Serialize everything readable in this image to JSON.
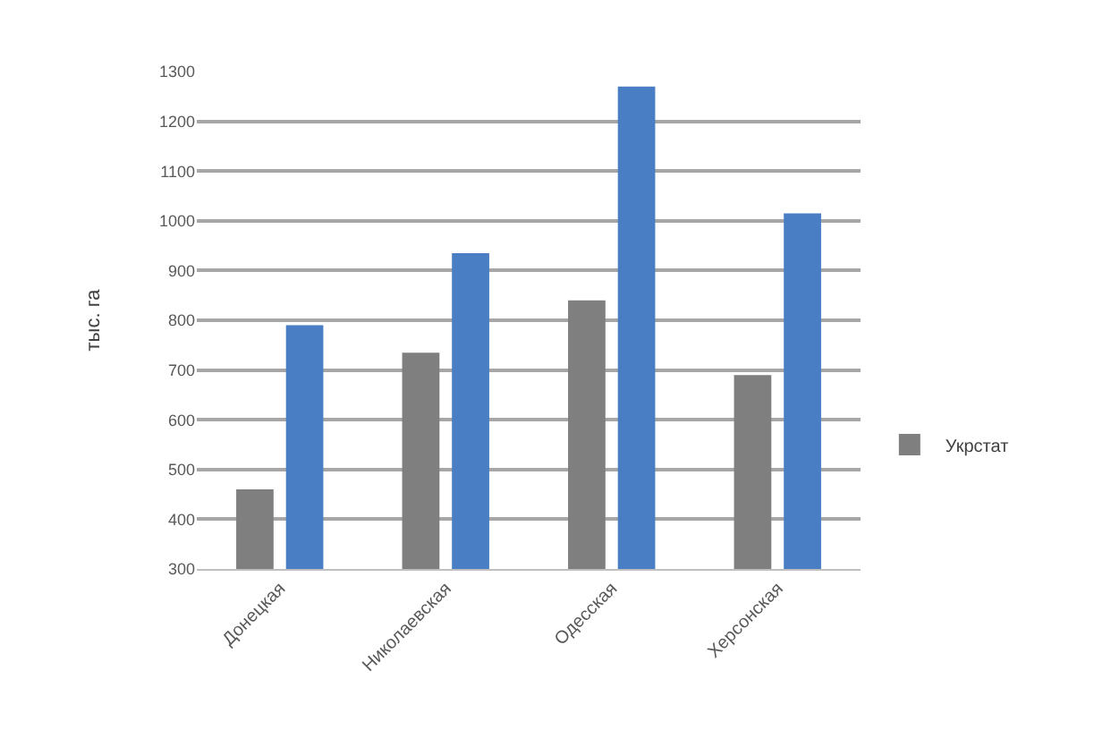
{
  "chart_data": {
    "type": "bar",
    "ylabel": "тыс. га",
    "categories": [
      "Донецкая",
      "Николаевская",
      "Одесская",
      "Херсонская"
    ],
    "series": [
      {
        "name": "Укрстат",
        "color": "#7f7f7f",
        "values": [
          460,
          735,
          840,
          690
        ]
      },
      {
        "color": "#4a7ec4",
        "values": [
          790,
          935,
          1270,
          1015
        ]
      }
    ],
    "ylim": [
      300,
      1300
    ],
    "yticks": [
      300,
      400,
      500,
      600,
      700,
      800,
      900,
      1000,
      1100,
      1200,
      1300
    ],
    "grid": "y",
    "legend": "right"
  }
}
